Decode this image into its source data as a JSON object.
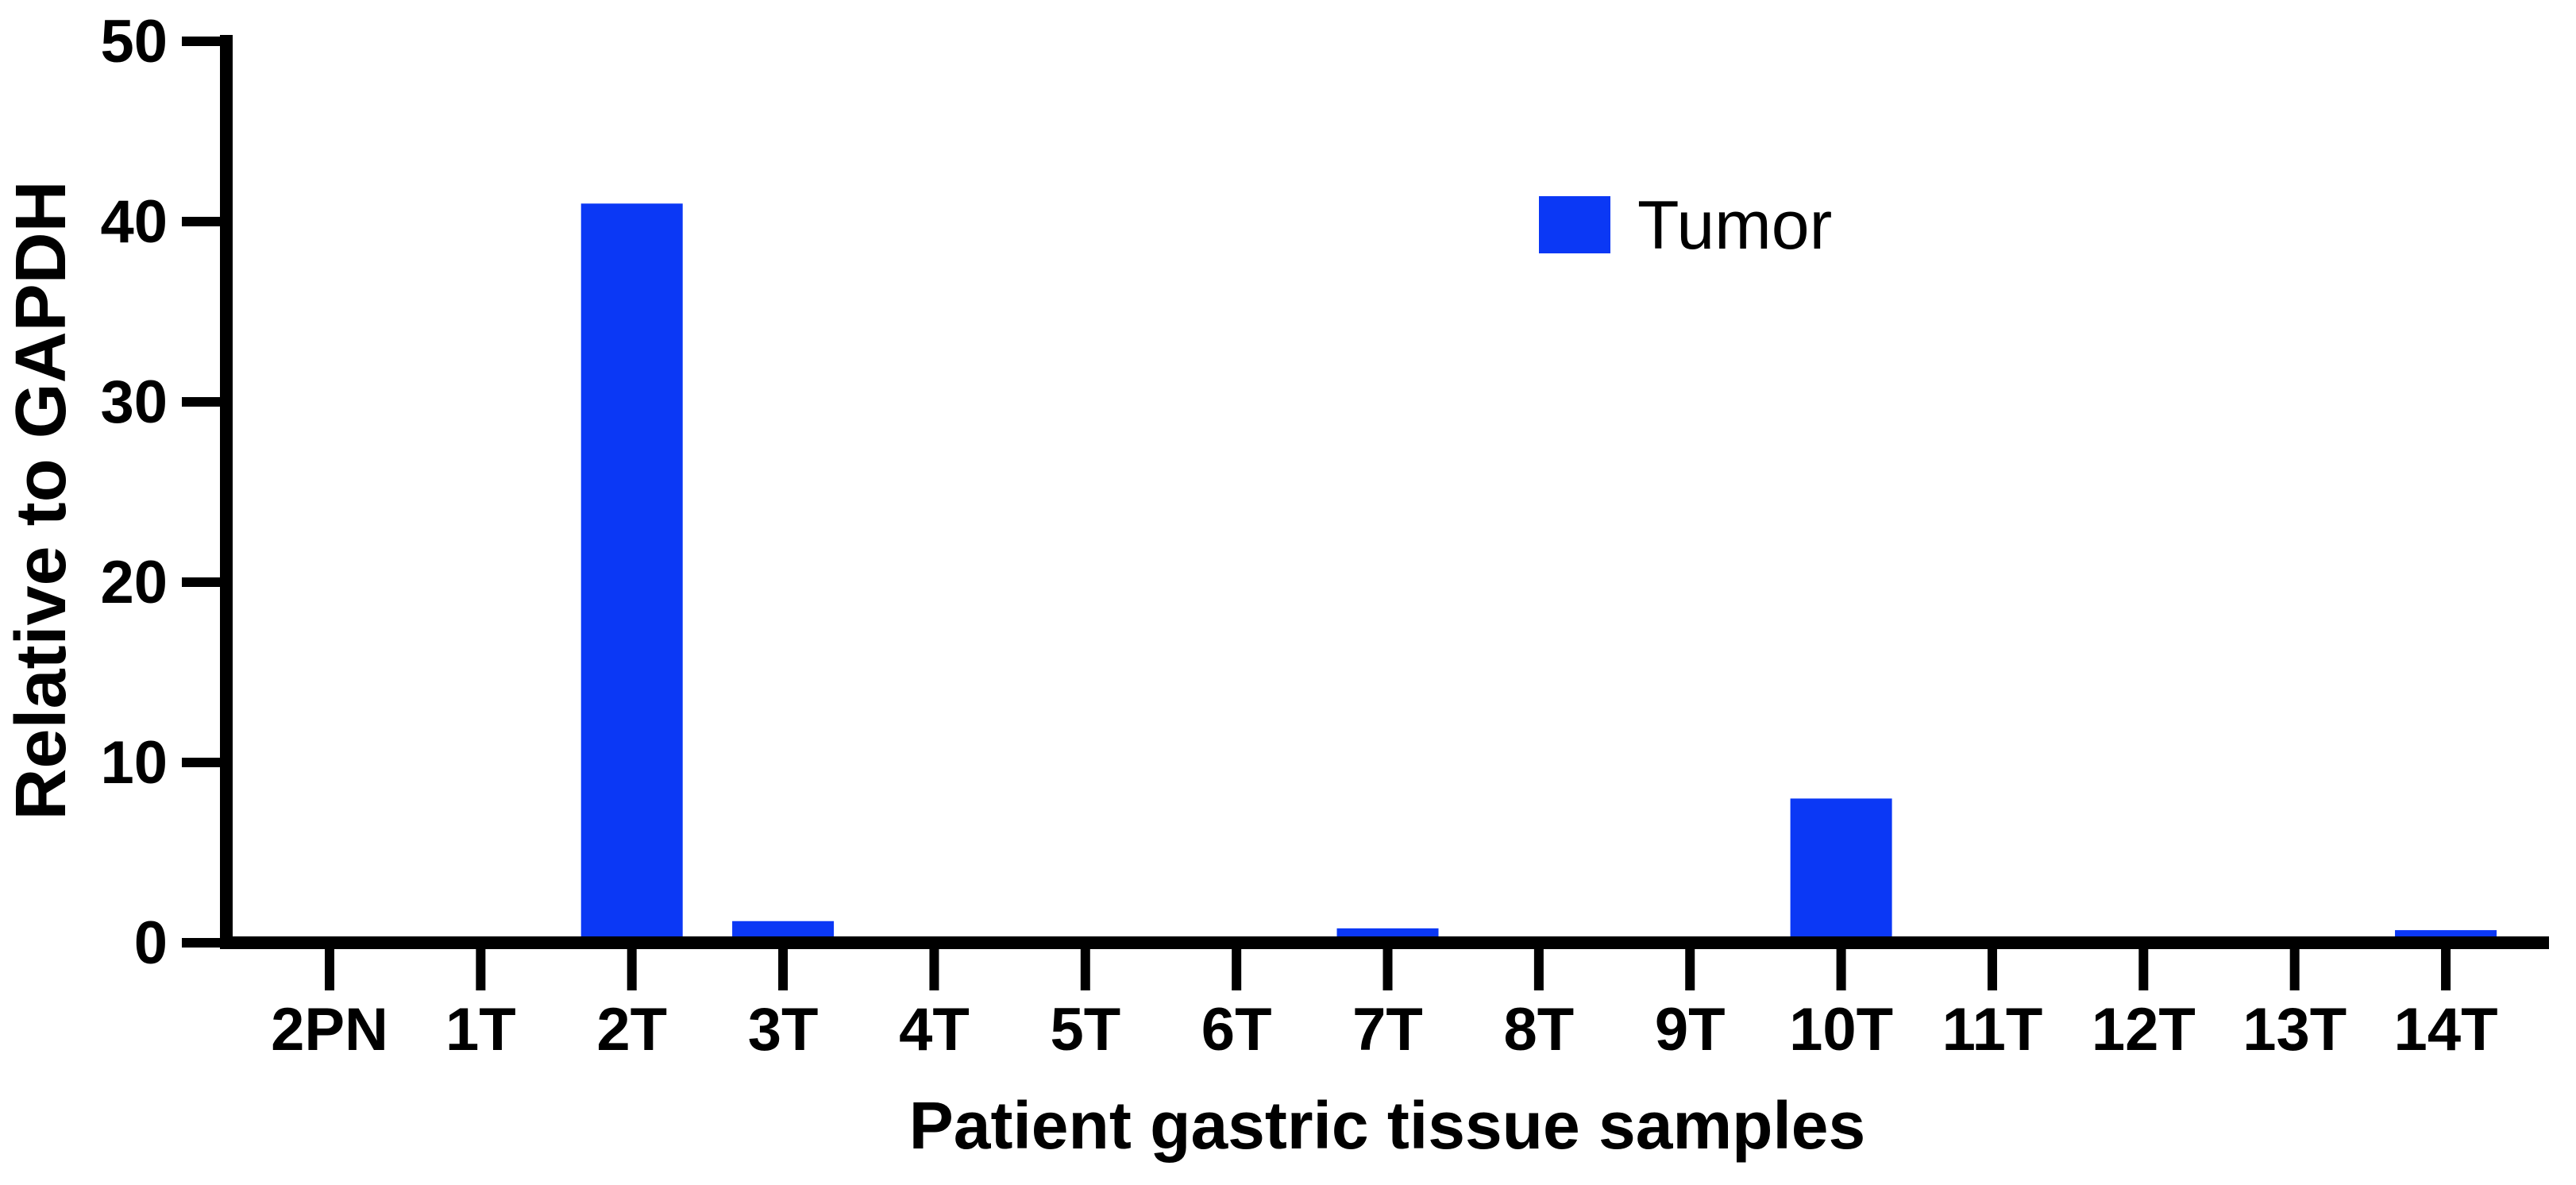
{
  "figure": {
    "background": "#ffffff",
    "axis_color": "#000000",
    "text_color": "#000000"
  },
  "chart_data": {
    "type": "bar",
    "title": "",
    "xlabel": "Patient gastric tissue samples",
    "ylabel": "Relative to GAPDH",
    "categories": [
      "2PN",
      "1T",
      "2T",
      "3T",
      "4T",
      "5T",
      "6T",
      "7T",
      "8T",
      "9T",
      "10T",
      "11T",
      "12T",
      "13T",
      "14T"
    ],
    "values": [
      0,
      0,
      41,
      1.2,
      0.3,
      0,
      0,
      0.8,
      0,
      0.25,
      8,
      0,
      0,
      0,
      0.7
    ],
    "ylim": [
      0,
      50
    ],
    "yticks": [
      0,
      10,
      20,
      30,
      40,
      50
    ],
    "grid": false,
    "bar_color": "#0b38f5",
    "legend": {
      "label": "Tumor",
      "color": "#0b38f5",
      "position": "top-right"
    }
  }
}
